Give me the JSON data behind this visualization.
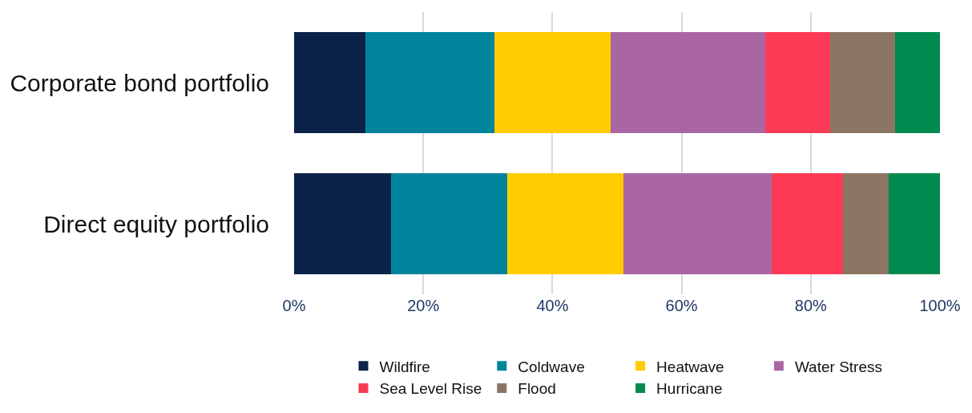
{
  "chart_data": {
    "type": "bar",
    "orientation": "horizontal",
    "stacked": true,
    "categories": [
      "Corporate bond portfolio",
      "Direct equity portfolio"
    ],
    "series": [
      {
        "name": "Wildfire",
        "color": "#0b2349",
        "values": [
          11,
          15
        ]
      },
      {
        "name": "Coldwave",
        "color": "#00849c",
        "values": [
          20,
          18
        ]
      },
      {
        "name": "Heatwave",
        "color": "#ffcc00",
        "values": [
          18,
          18
        ]
      },
      {
        "name": "Water Stress",
        "color": "#aa66a3",
        "values": [
          24,
          23
        ]
      },
      {
        "name": "Sea Level Rise",
        "color": "#fc3a55",
        "values": [
          10,
          11
        ]
      },
      {
        "name": "Flood",
        "color": "#8b7663",
        "values": [
          10,
          7
        ]
      },
      {
        "name": "Hurricane",
        "color": "#008a50",
        "values": [
          7,
          8
        ]
      }
    ],
    "xlim": [
      0,
      100
    ],
    "xticks": [
      {
        "value": 0,
        "label": "0%"
      },
      {
        "value": 20,
        "label": "20%"
      },
      {
        "value": 40,
        "label": "40%"
      },
      {
        "value": 60,
        "label": "60%"
      },
      {
        "value": 80,
        "label": "80%"
      },
      {
        "value": 100,
        "label": "100%"
      }
    ],
    "grid": "x",
    "legend": "bottom"
  }
}
